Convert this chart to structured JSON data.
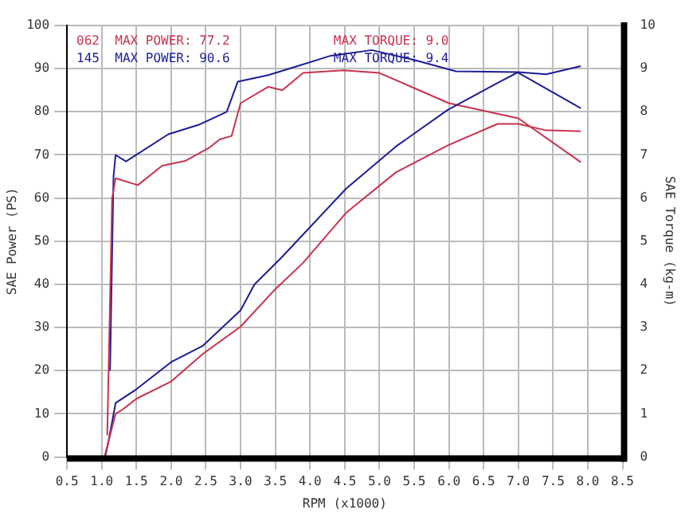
{
  "chart_data": {
    "type": "line",
    "xlabel": "RPM (x1000)",
    "ylabel": "SAE Power (PS)",
    "y2label": "SAE Torque (kg-m)",
    "annotations": [
      "062  MAX POWER: 77.2",
      "145  MAX POWER: 90.6",
      "MAX TORQUE: 9.0",
      "MAX TORQUE: 9.4"
    ],
    "series": [
      {
        "color": "#c8324e",
        "x": [
          1.04,
          1.2,
          1.3,
          1.5,
          2.0,
          2.45,
          3.0,
          3.5,
          3.9,
          4.52,
          5.24,
          5.98,
          6.7,
          7.0,
          7.4,
          7.9
        ],
        "values": [
          0,
          10,
          11,
          13.5,
          17.5,
          23.8,
          30.2,
          38.9,
          45,
          56.6,
          66,
          72.2,
          77.2,
          77.2,
          75.7,
          75.5
        ]
      },
      {
        "color": "#1c1c96",
        "x": [
          1.05,
          1.1,
          1.2,
          1.5,
          2.0,
          2.45,
          3.0,
          3.2,
          3.6,
          4.52,
          5.24,
          5.98,
          6.7,
          7.0,
          7.4,
          7.9
        ],
        "values": [
          0,
          3.8,
          12.5,
          15.7,
          22,
          25.7,
          34,
          40,
          46.4,
          62.2,
          72,
          80.4,
          86.7,
          89.2,
          88.7,
          90.6
        ]
      },
      {
        "color": "#c8324e",
        "axis": "y2",
        "x": [
          1.08,
          1.15,
          1.2,
          1.52,
          1.87,
          2.2,
          2.55,
          2.7,
          2.87,
          3.0,
          3.4,
          3.6,
          3.9,
          4.48,
          5.0,
          6.0,
          7.0,
          7.9
        ],
        "values": [
          0.5,
          6.0,
          6.46,
          6.3,
          6.75,
          6.86,
          7.17,
          7.36,
          7.44,
          8.2,
          8.58,
          8.5,
          8.9,
          8.96,
          8.9,
          8.2,
          7.85,
          6.83
        ]
      },
      {
        "color": "#1c1c96",
        "axis": "y2",
        "x": [
          1.12,
          1.17,
          1.2,
          1.35,
          1.96,
          2.4,
          2.8,
          2.96,
          3.4,
          3.8,
          4.3,
          4.89,
          5.5,
          6.1,
          6.98,
          7.9
        ],
        "values": [
          2.0,
          6.5,
          7.0,
          6.85,
          7.48,
          7.7,
          8.0,
          8.7,
          8.85,
          9.05,
          9.3,
          9.43,
          9.2,
          8.94,
          8.92,
          8.08
        ]
      }
    ],
    "xlim": [
      0.5,
      8.5
    ],
    "xticks": [
      0.5,
      {
        "value": 1,
        "label": "1.0"
      },
      1.5,
      {
        "value": 2,
        "label": "2.0"
      },
      2.5,
      {
        "value": 3,
        "label": "3.0"
      },
      3.5,
      {
        "value": 4,
        "label": "4.0"
      },
      4.5,
      {
        "value": 5,
        "label": "5.0"
      },
      5.5,
      {
        "value": 6,
        "label": "6.0"
      },
      6.5,
      {
        "value": 7,
        "label": "7.0"
      },
      7.5,
      {
        "value": 8,
        "label": "8.0"
      },
      8.5
    ],
    "ylim": [
      0,
      100
    ],
    "yticks": [
      0,
      10,
      20,
      30,
      40,
      50,
      60,
      70,
      80,
      90,
      100
    ],
    "y2lim": [
      0,
      10
    ],
    "y2ticks": [
      0,
      1,
      2,
      3,
      4,
      5,
      6,
      7,
      8,
      9,
      10
    ],
    "grid": true,
    "legend": false,
    "marker": "none",
    "line_style": "solid"
  }
}
